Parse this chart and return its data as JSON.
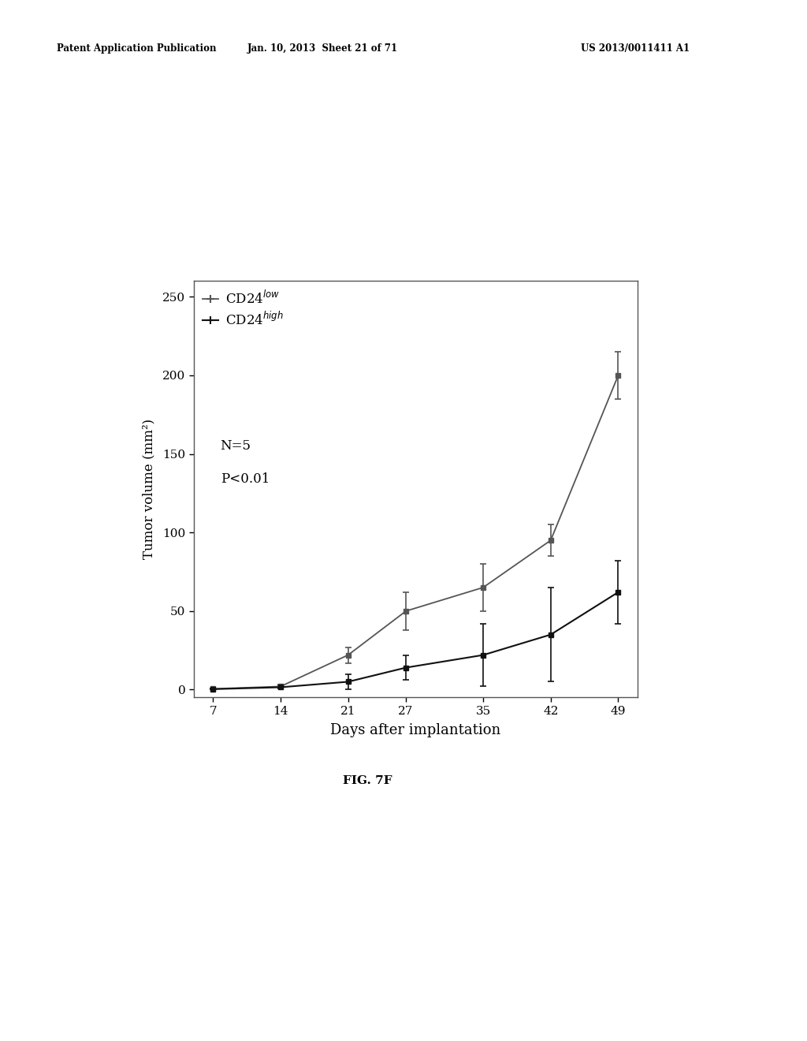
{
  "cd24low_x": [
    7,
    14,
    21,
    27,
    35,
    42,
    49
  ],
  "cd24low_y": [
    0.5,
    2.0,
    22.0,
    50.0,
    65.0,
    95.0,
    200.0
  ],
  "cd24low_err": [
    0.3,
    1.0,
    5.0,
    12.0,
    15.0,
    10.0,
    15.0
  ],
  "cd24high_x": [
    7,
    14,
    21,
    27,
    35,
    42,
    49
  ],
  "cd24high_y": [
    0.3,
    1.5,
    5.0,
    14.0,
    22.0,
    35.0,
    62.0
  ],
  "cd24high_err": [
    0.2,
    0.8,
    5.0,
    8.0,
    20.0,
    30.0,
    20.0
  ],
  "xlabel": "Days after implantation",
  "ylabel": "Tumor volume (mm²)",
  "xlim": [
    5,
    51
  ],
  "ylim": [
    -5,
    260
  ],
  "xticks": [
    7,
    14,
    21,
    27,
    35,
    42,
    49
  ],
  "yticks": [
    0,
    50,
    100,
    150,
    200,
    250
  ],
  "cd24low_color": "#555555",
  "cd24high_color": "#111111",
  "fig_label": "FIG. 7F",
  "header_left": "Patent Application Publication",
  "header_mid": "Jan. 10, 2013  Sheet 21 of 71",
  "header_right": "US 2013/0011411 A1",
  "annotation_n": "N=5",
  "annotation_p": "P<0.01"
}
